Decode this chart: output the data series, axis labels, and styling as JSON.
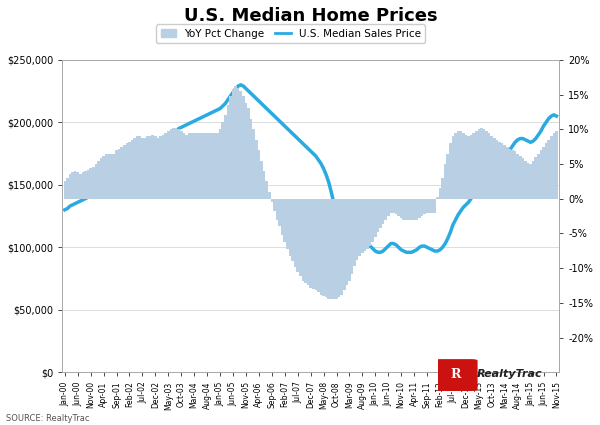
{
  "title": "U.S. Median Home Prices",
  "source": "SOURCE: RealtyTrac",
  "legend_bar": "YoY Pct Change",
  "legend_line": "U.S. Median Sales Price",
  "bar_color": "#b8cfe4",
  "line_color": "#29abe2",
  "left_yticks": [
    0,
    50000,
    100000,
    150000,
    200000,
    250000
  ],
  "left_ylim": [
    0,
    250000
  ],
  "right_yticks": [
    -0.2,
    -0.15,
    -0.1,
    -0.05,
    0.0,
    0.05,
    0.1,
    0.15,
    0.2
  ],
  "right_ylim": [
    -0.25,
    0.2
  ],
  "x_tick_labels": [
    "Jan-00",
    "Jun-00",
    "Nov-00",
    "Apr-01",
    "Sep-01",
    "Feb-02",
    "Jul-02",
    "Dec-02",
    "May-03",
    "Oct-03",
    "Mar-04",
    "Aug-04",
    "Jan-05",
    "Jun-05",
    "Nov-05",
    "Apr-06",
    "Sep-06",
    "Feb-07",
    "Jul-07",
    "Dec-07",
    "May-08",
    "Oct-08",
    "Mar-09",
    "Aug-09",
    "Jan-10",
    "Jun-10",
    "Nov-10",
    "Apr-11",
    "Sep-11",
    "Feb-12",
    "Jul-12",
    "Dec-12",
    "May-13",
    "Oct-13",
    "Mar-14",
    "Aug-14",
    "Jan-15",
    "Jun-15",
    "Nov-15"
  ],
  "price_data": [
    130000,
    131000,
    133000,
    134000,
    135000,
    136000,
    137000,
    138000,
    139000,
    140000,
    141000,
    142000,
    143000,
    145000,
    147000,
    149000,
    150000,
    151000,
    152000,
    153000,
    155000,
    156000,
    157000,
    158000,
    159000,
    161000,
    163000,
    165000,
    167000,
    169000,
    170000,
    171000,
    173000,
    175000,
    177000,
    178000,
    179000,
    181000,
    183000,
    185000,
    187000,
    189000,
    191000,
    193000,
    195000,
    196000,
    197000,
    198000,
    199000,
    200000,
    201000,
    202000,
    203000,
    204000,
    205000,
    206000,
    207000,
    208000,
    209000,
    210000,
    211000,
    213000,
    215000,
    218000,
    221000,
    224000,
    227000,
    229000,
    230000,
    229000,
    227000,
    225000,
    223000,
    221000,
    219000,
    217000,
    215000,
    213000,
    211000,
    209000,
    207000,
    205000,
    203000,
    201000,
    199000,
    197000,
    195000,
    193000,
    191000,
    189000,
    187000,
    185000,
    183000,
    181000,
    179000,
    177000,
    175000,
    173000,
    170000,
    167000,
    163000,
    158000,
    152000,
    144000,
    135000,
    126000,
    118000,
    112000,
    108000,
    105000,
    103000,
    102000,
    105000,
    108000,
    111000,
    110000,
    107000,
    104000,
    101000,
    99000,
    97000,
    96000,
    96000,
    97000,
    99000,
    101000,
    103000,
    103000,
    102000,
    100000,
    98000,
    97000,
    96000,
    96000,
    96000,
    97000,
    98000,
    100000,
    101000,
    101000,
    100000,
    99000,
    98000,
    97000,
    97000,
    98000,
    100000,
    103000,
    107000,
    112000,
    118000,
    122000,
    126000,
    129000,
    132000,
    134000,
    136000,
    139000,
    143000,
    148000,
    153000,
    158000,
    163000,
    166000,
    168000,
    169000,
    170000,
    170000,
    170000,
    171000,
    173000,
    175000,
    178000,
    181000,
    184000,
    186000,
    187000,
    187000,
    186000,
    185000,
    184000,
    185000,
    187000,
    190000,
    193000,
    197000,
    200000,
    203000,
    205000,
    206000,
    205000
  ],
  "yoy_data": [
    0.025,
    0.03,
    0.035,
    0.038,
    0.04,
    0.038,
    0.036,
    0.038,
    0.04,
    0.042,
    0.044,
    0.046,
    0.05,
    0.055,
    0.058,
    0.062,
    0.065,
    0.065,
    0.065,
    0.065,
    0.07,
    0.072,
    0.075,
    0.078,
    0.08,
    0.082,
    0.085,
    0.088,
    0.09,
    0.09,
    0.088,
    0.088,
    0.09,
    0.09,
    0.092,
    0.09,
    0.088,
    0.09,
    0.092,
    0.095,
    0.098,
    0.1,
    0.102,
    0.102,
    0.1,
    0.098,
    0.095,
    0.092,
    0.095,
    0.095,
    0.095,
    0.095,
    0.095,
    0.095,
    0.095,
    0.095,
    0.095,
    0.095,
    0.095,
    0.095,
    0.1,
    0.11,
    0.12,
    0.135,
    0.148,
    0.158,
    0.162,
    0.16,
    0.155,
    0.148,
    0.138,
    0.13,
    0.115,
    0.1,
    0.085,
    0.07,
    0.055,
    0.04,
    0.025,
    0.01,
    -0.005,
    -0.018,
    -0.03,
    -0.04,
    -0.052,
    -0.062,
    -0.072,
    -0.082,
    -0.09,
    -0.098,
    -0.105,
    -0.112,
    -0.118,
    -0.122,
    -0.125,
    -0.128,
    -0.13,
    -0.132,
    -0.135,
    -0.138,
    -0.14,
    -0.142,
    -0.144,
    -0.145,
    -0.145,
    -0.144,
    -0.142,
    -0.138,
    -0.132,
    -0.125,
    -0.118,
    -0.108,
    -0.097,
    -0.088,
    -0.082,
    -0.078,
    -0.075,
    -0.072,
    -0.068,
    -0.062,
    -0.055,
    -0.048,
    -0.042,
    -0.036,
    -0.03,
    -0.025,
    -0.02,
    -0.02,
    -0.022,
    -0.025,
    -0.028,
    -0.03,
    -0.03,
    -0.03,
    -0.03,
    -0.03,
    -0.03,
    -0.028,
    -0.025,
    -0.022,
    -0.02,
    -0.02,
    -0.02,
    -0.02,
    0.002,
    0.015,
    0.03,
    0.05,
    0.065,
    0.08,
    0.09,
    0.095,
    0.098,
    0.098,
    0.095,
    0.092,
    0.09,
    0.092,
    0.095,
    0.098,
    0.1,
    0.102,
    0.1,
    0.098,
    0.095,
    0.09,
    0.088,
    0.085,
    0.082,
    0.08,
    0.078,
    0.075,
    0.072,
    0.07,
    0.068,
    0.065,
    0.062,
    0.058,
    0.055,
    0.052,
    0.05,
    0.055,
    0.06,
    0.065,
    0.07,
    0.075,
    0.08,
    0.085,
    0.09,
    0.095,
    0.098
  ]
}
